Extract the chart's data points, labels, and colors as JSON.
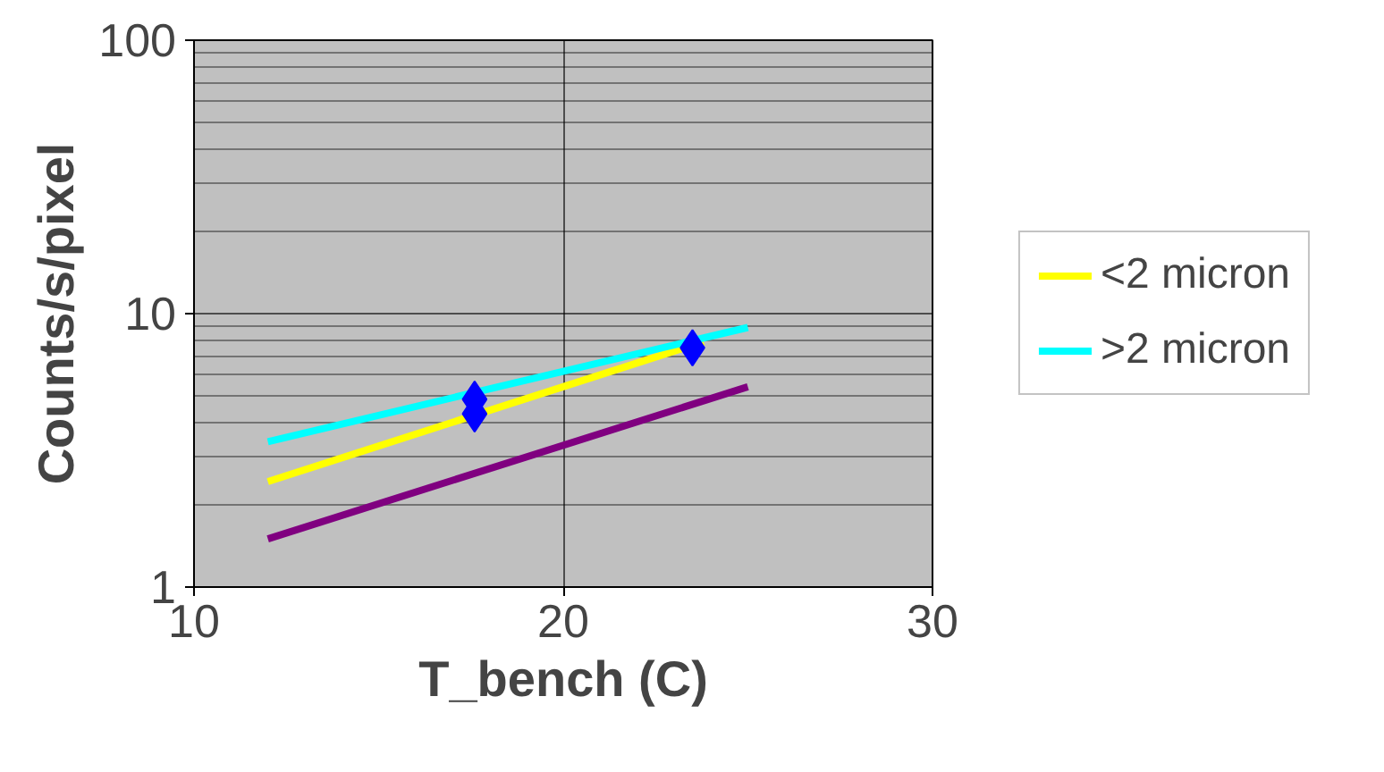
{
  "chart_data": {
    "type": "line",
    "xlabel": "T_bench (C)",
    "ylabel": "Counts/s/pixel",
    "log": "y",
    "xlim": [
      10,
      30
    ],
    "ylim": [
      1,
      100
    ],
    "xticks": [
      10,
      20,
      30
    ],
    "yticks": [
      1,
      10,
      100
    ],
    "grid": true,
    "legend": "right",
    "line_style": "solid",
    "series": [
      {
        "name": "<2 micron",
        "color": "#ffff00",
        "x": [
          12,
          23.8
        ],
        "values": [
          2.43,
          7.9
        ]
      },
      {
        "name": ">2 micron",
        "color": "#00ffff",
        "x": [
          12,
          25
        ],
        "values": [
          3.4,
          8.9
        ]
      },
      {
        "color": "#800080",
        "x": [
          12,
          25
        ],
        "values": [
          1.5,
          5.4
        ]
      },
      {
        "type": "scatter",
        "marker": "diamond",
        "color": "#0000ff",
        "x": [
          17.6,
          17.6,
          23.5
        ],
        "values": [
          4.86,
          4.3,
          7.5
        ]
      }
    ]
  }
}
